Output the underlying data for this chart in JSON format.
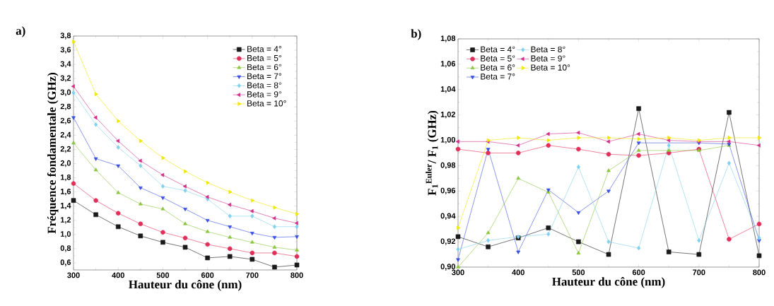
{
  "chart_data": [
    {
      "type": "line",
      "title": "a)",
      "xlabel": "Hauteur du cône (nm)",
      "ylabel": "Fréquence fondamentale (GHz)",
      "x": [
        300,
        350,
        400,
        450,
        500,
        550,
        600,
        650,
        700,
        750,
        800
      ],
      "xlim": [
        300,
        800
      ],
      "xticks": [
        300,
        400,
        500,
        600,
        700,
        800
      ],
      "ylim": [
        0.5,
        3.8
      ],
      "yticks": [
        {
          "value": 0.6,
          "label": "0,6"
        },
        {
          "value": 0.8,
          "label": "0,8"
        },
        {
          "value": 1.0,
          "label": "1,0"
        },
        {
          "value": 1.2,
          "label": "1,2"
        },
        {
          "value": 1.4,
          "label": "1,4"
        },
        {
          "value": 1.6,
          "label": "1,6"
        },
        {
          "value": 1.8,
          "label": "1,8"
        },
        {
          "value": 2.0,
          "label": "2,0"
        },
        {
          "value": 2.2,
          "label": "2,2"
        },
        {
          "value": 2.4,
          "label": "2,4"
        },
        {
          "value": 2.6,
          "label": "2,6"
        },
        {
          "value": 2.8,
          "label": "2,8"
        },
        {
          "value": 3.0,
          "label": "3,0"
        },
        {
          "value": 3.2,
          "label": "3,2"
        },
        {
          "value": 3.4,
          "label": "3,4"
        },
        {
          "value": 3.6,
          "label": "3,6"
        },
        {
          "value": 3.8,
          "label": "3,8"
        }
      ],
      "legend": "top right",
      "grid": false,
      "line_style": "solid",
      "series": [
        {
          "name": "Beta = 4°",
          "color": "#1a1a1a",
          "marker": "square",
          "values": [
            1.48,
            1.28,
            1.11,
            0.98,
            0.89,
            0.82,
            0.67,
            0.69,
            0.65,
            0.54,
            0.57
          ]
        },
        {
          "name": "Beta = 5°",
          "color": "#e0305a",
          "marker": "circle",
          "values": [
            1.72,
            1.48,
            1.3,
            1.15,
            1.03,
            0.95,
            0.86,
            0.8,
            0.74,
            0.74,
            0.69
          ]
        },
        {
          "name": "Beta = 6°",
          "color": "#8cc63f",
          "marker": "triangle",
          "values": [
            2.29,
            1.91,
            1.59,
            1.43,
            1.36,
            1.15,
            1.04,
            0.96,
            0.89,
            0.82,
            0.78
          ]
        },
        {
          "name": "Beta = 7°",
          "color": "#3a50e0",
          "marker": "triangle-down",
          "values": [
            2.65,
            2.07,
            1.97,
            1.66,
            1.52,
            1.36,
            1.2,
            1.11,
            1.02,
            0.96,
            0.97
          ]
        },
        {
          "name": "Beta = 8°",
          "color": "#80d0f0",
          "marker": "diamond",
          "values": [
            3.0,
            2.55,
            2.23,
            1.97,
            1.68,
            1.62,
            1.5,
            1.26,
            1.26,
            1.11,
            1.11
          ]
        },
        {
          "name": "Beta = 9°",
          "color": "#d0308a",
          "marker": "triangle-left",
          "values": [
            3.09,
            2.65,
            2.32,
            2.04,
            1.84,
            1.68,
            1.53,
            1.42,
            1.33,
            1.23,
            1.16
          ]
        },
        {
          "name": "Beta = 10°",
          "color": "#f0e800",
          "marker": "triangle-right",
          "values": [
            3.72,
            2.98,
            2.6,
            2.32,
            2.08,
            1.89,
            1.73,
            1.6,
            1.48,
            1.38,
            1.29
          ]
        }
      ]
    },
    {
      "type": "line",
      "title": "b)",
      "xlabel": "Hauteur du cône (nm)",
      "ylabel": "F$_{1}$$^{Euler}$/ F$_{1}$ (GHz)",
      "x": [
        300,
        350,
        400,
        450,
        500,
        550,
        600,
        650,
        700,
        750,
        800
      ],
      "xlim": [
        300,
        800
      ],
      "xticks": [
        300,
        400,
        500,
        600,
        700,
        800
      ],
      "ylim": [
        0.9,
        1.08
      ],
      "yticks": [
        {
          "value": 0.9,
          "label": "0,90"
        },
        {
          "value": 0.92,
          "label": "0,92"
        },
        {
          "value": 0.94,
          "label": "0,94"
        },
        {
          "value": 0.96,
          "label": "0,96"
        },
        {
          "value": 0.98,
          "label": "0,98"
        },
        {
          "value": 1.0,
          "label": "1,00"
        },
        {
          "value": 1.02,
          "label": "1,02"
        },
        {
          "value": 1.04,
          "label": "1,04"
        },
        {
          "value": 1.06,
          "label": "1,06"
        },
        {
          "value": 1.08,
          "label": "1,08"
        }
      ],
      "legend": "top left",
      "grid": false,
      "line_style": "solid",
      "series": [
        {
          "name": "Beta = 4°",
          "color": "#1a1a1a",
          "marker": "square",
          "values": [
            0.924,
            0.916,
            0.923,
            0.931,
            0.92,
            0.91,
            1.025,
            0.912,
            0.91,
            1.022,
            0.909
          ]
        },
        {
          "name": "Beta = 5°",
          "color": "#e0305a",
          "marker": "circle",
          "values": [
            0.993,
            0.99,
            0.99,
            0.996,
            0.993,
            0.989,
            0.988,
            0.99,
            0.993,
            0.922,
            0.934
          ]
        },
        {
          "name": "Beta = 6°",
          "color": "#8cc63f",
          "marker": "triangle",
          "values": [
            0.9,
            0.927,
            0.97,
            0.959,
            0.911,
            0.976,
            0.992,
            0.992,
            0.992,
            0.996,
            null
          ]
        },
        {
          "name": "Beta = 7°",
          "color": "#3a50e0",
          "marker": "triangle-down",
          "values": [
            0.906,
            0.993,
            0.912,
            0.961,
            0.943,
            0.96,
            0.998,
            null,
            0.998,
            0.997,
            0.921
          ]
        },
        {
          "name": "Beta = 8°",
          "color": "#80d0f0",
          "marker": "diamond",
          "values": [
            0.914,
            0.921,
            0.924,
            0.926,
            0.979,
            0.92,
            0.915,
            0.996,
            0.921,
            0.982,
            0.923
          ]
        },
        {
          "name": "Beta = 9°",
          "color": "#d0308a",
          "marker": "triangle-left",
          "values": [
            0.999,
            0.999,
            0.996,
            1.005,
            1.006,
            0.999,
            1.005,
            1.0,
            0.999,
            0.999,
            0.996
          ]
        },
        {
          "name": "Beta = 10°",
          "color": "#f0e800",
          "marker": "triangle-right",
          "values": [
            0.931,
            1.0,
            1.002,
            1.0,
            1.002,
            1.002,
            1.001,
            1.002,
            1.0,
            1.002,
            1.002
          ]
        }
      ]
    }
  ]
}
